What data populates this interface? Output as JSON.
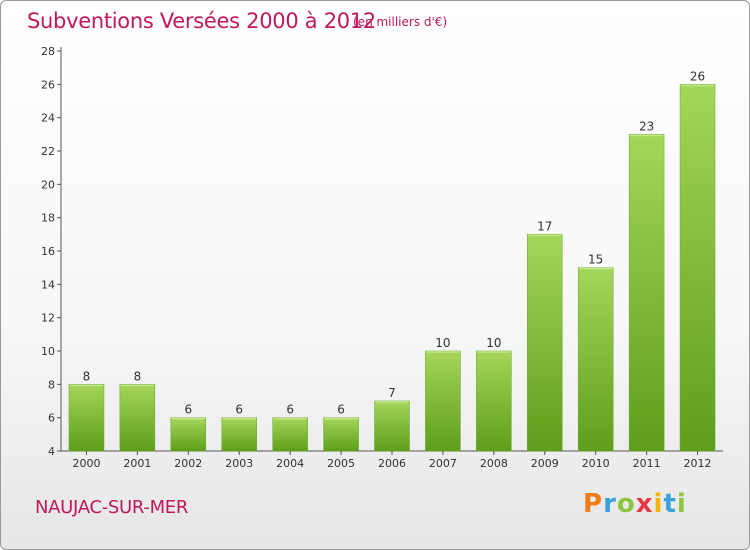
{
  "header": {
    "title": "Subventions Versées 2000 à 2012",
    "subtitle": "(en milliers d'€)"
  },
  "footer": {
    "location": "NAUJAC-SUR-MER",
    "logo_text": "Proxiti",
    "logo_colors": [
      "#f07d1a",
      "#3aa1d8",
      "#8cc63f",
      "#e63946",
      "#f4b400",
      "#3aa1d8",
      "#8cc63f"
    ]
  },
  "chart_data": {
    "type": "bar",
    "title": "Subventions Versées 2000 à 2012",
    "subtitle": "(en milliers d'€)",
    "xlabel": "",
    "ylabel": "",
    "categories": [
      "2000",
      "2001",
      "2002",
      "2003",
      "2004",
      "2005",
      "2006",
      "2007",
      "2008",
      "2009",
      "2010",
      "2011",
      "2012"
    ],
    "values": [
      8,
      8,
      6,
      6,
      6,
      6,
      7,
      10,
      10,
      17,
      15,
      23,
      26
    ],
    "ylim": [
      4,
      28
    ],
    "yticks": [
      4,
      6,
      8,
      10,
      12,
      14,
      16,
      18,
      20,
      22,
      24,
      26,
      28
    ],
    "grid": false,
    "legend": "none",
    "bar_color": "#7cbf2a",
    "bar_color_light": "#a4d65a",
    "bar_color_dark": "#5e9e1a",
    "axis_color": "#555555"
  }
}
